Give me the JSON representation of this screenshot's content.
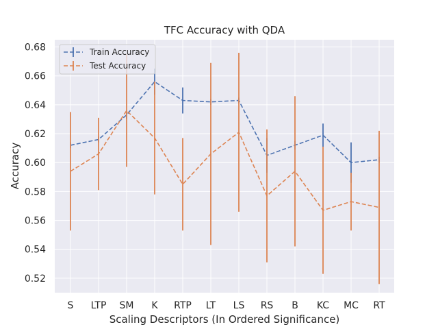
{
  "chart_data": {
    "type": "line",
    "title": "TFC Accuracy with QDA",
    "xlabel": "Scaling Descriptors (In Ordered Significance)",
    "ylabel": "Accuracy",
    "categories": [
      "S",
      "LTP",
      "SM",
      "K",
      "RTP",
      "LT",
      "LS",
      "RS",
      "B",
      "KC",
      "MC",
      "RT"
    ],
    "ylim": [
      0.51,
      0.685
    ],
    "yticks": [
      "0.52",
      "0.54",
      "0.56",
      "0.58",
      "0.60",
      "0.62",
      "0.64",
      "0.66",
      "0.68"
    ],
    "grid": true,
    "legend_position": "top-left",
    "series": [
      {
        "name": "Train Accuracy",
        "color": "#4c72b0",
        "values": [
          0.612,
          0.616,
          0.633,
          0.656,
          0.643,
          0.642,
          0.643,
          0.605,
          0.612,
          0.619,
          0.6,
          0.602
        ],
        "errors": [
          0.002,
          0.002,
          0.003,
          0.009,
          0.009,
          0.002,
          0.002,
          0.012,
          0.003,
          0.008,
          0.014,
          0.002
        ]
      },
      {
        "name": "Test Accuracy",
        "color": "#dd8452",
        "values": [
          0.594,
          0.606,
          0.636,
          0.617,
          0.585,
          0.606,
          0.621,
          0.577,
          0.594,
          0.567,
          0.573,
          0.569
        ],
        "errors": [
          0.041,
          0.025,
          0.039,
          0.039,
          0.032,
          0.063,
          0.055,
          0.046,
          0.052,
          0.044,
          0.02,
          0.053
        ]
      }
    ]
  }
}
